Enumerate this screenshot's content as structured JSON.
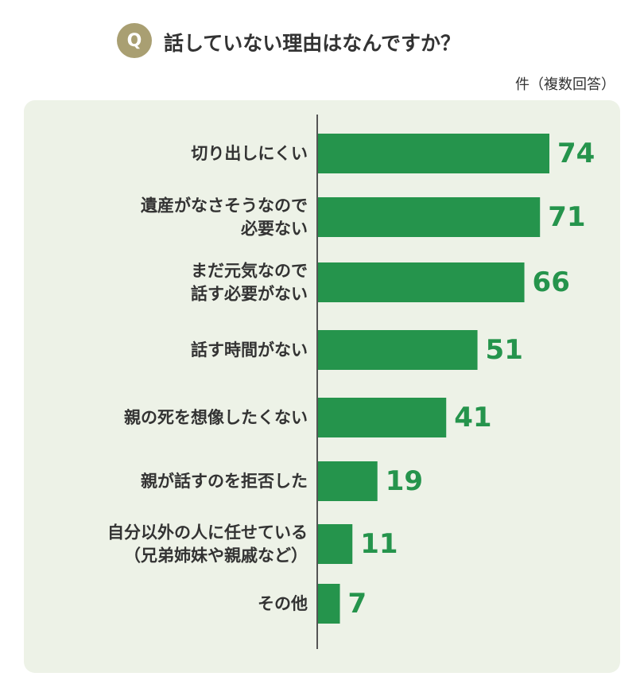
{
  "question": {
    "badge": "Q",
    "text": "話していない理由はなんですか？"
  },
  "unit_label": "件（複数回答）",
  "colors": {
    "bar": "#25944c",
    "value_text": "#25944c",
    "badge": "#a99f72",
    "panel": "#edf2e7",
    "axis": "#555555",
    "label_text": "#333333"
  },
  "chart_data": {
    "type": "bar",
    "orientation": "horizontal",
    "title": "話していない理由はなんですか？",
    "unit": "件（複数回答）",
    "categories": [
      [
        "切り出しにくい"
      ],
      [
        "遺産がなさそうなので",
        "必要ない"
      ],
      [
        "まだ元気なので",
        "話す必要がない"
      ],
      [
        "話す時間がない"
      ],
      [
        "親の死を想像したくない"
      ],
      [
        "親が話すのを拒否した"
      ],
      [
        "自分以外の人に任せている",
        "（兄弟姉妹や親戚など）"
      ],
      [
        "その他"
      ]
    ],
    "values": [
      74,
      71,
      66,
      51,
      41,
      19,
      11,
      7
    ],
    "xlim": [
      0,
      74
    ],
    "grid": false,
    "legend": "none"
  }
}
